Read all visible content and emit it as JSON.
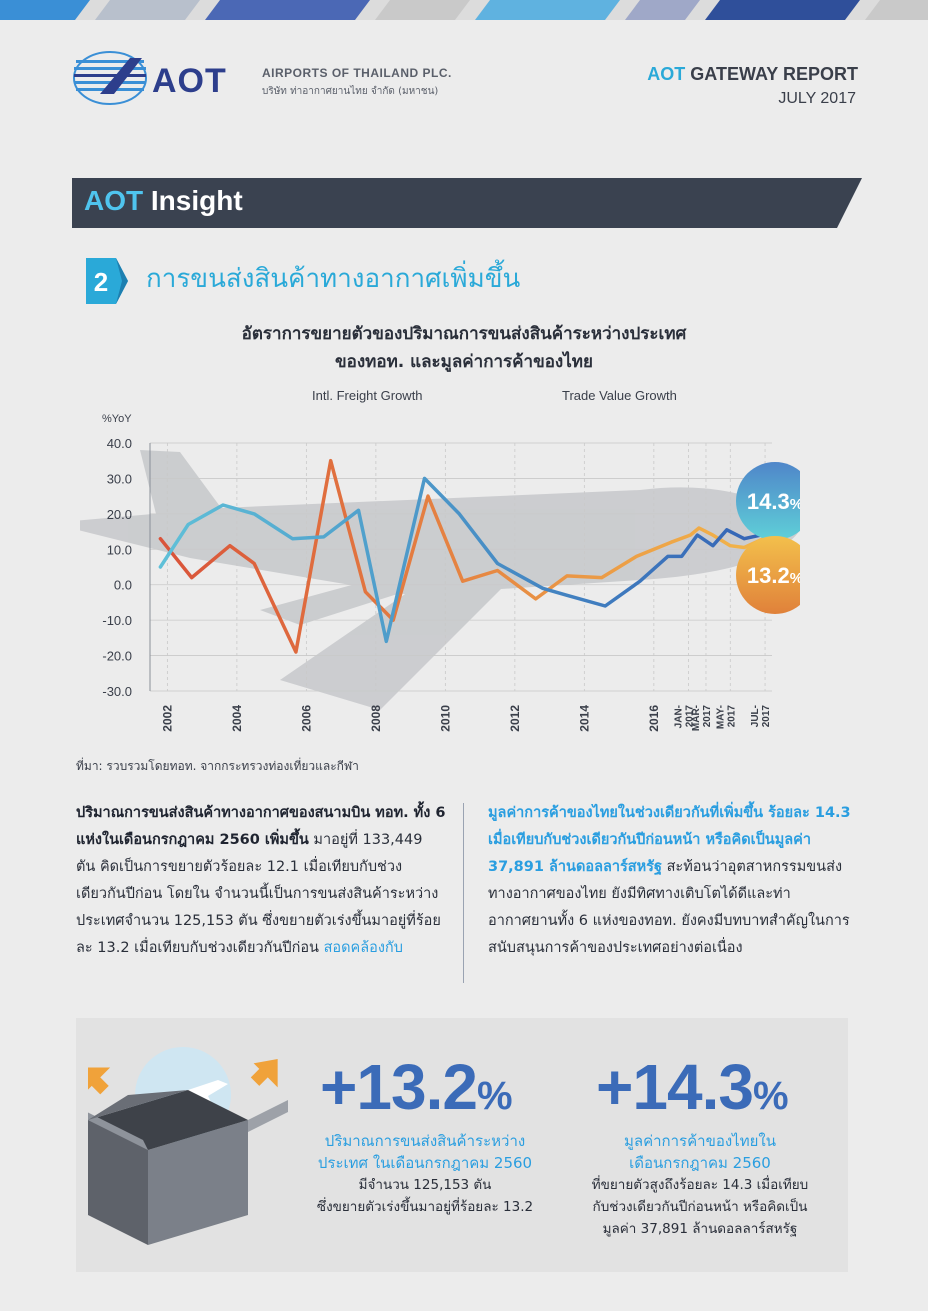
{
  "header": {
    "logo_text": "AOT",
    "company_en": "AIRPORTS OF THAILAND PLC.",
    "company_th": "บริษัท ท่าอากาศยานไทย จำกัด (มหาชน)",
    "report_prefix": "AOT",
    "report_title": "GATEWAY REPORT",
    "report_month": "JULY 2017"
  },
  "insight": {
    "prefix": "AOT",
    "title": "Insight"
  },
  "section": {
    "number": "2",
    "title": "การขนส่งสินค้าทางอากาศเพิ่มขึ้น"
  },
  "chart_data": {
    "type": "line",
    "title_line1": "อัตราการขยายตัวของปริมาณการขนส่งสินค้าระหว่างประเทศ",
    "title_line2": "ของทอท. และมูลค่าการค้าของไทย",
    "ylabel": "%YoY",
    "ylim": [
      -30,
      40
    ],
    "yticks": [
      "40.0",
      "30.0",
      "20.0",
      "10.0",
      "0.0",
      "-10.0",
      "-20.0",
      "-30.0"
    ],
    "xticks": [
      "2002",
      "2004",
      "2006",
      "2008",
      "2010",
      "2012",
      "2014",
      "2016",
      "JAN-2017",
      "MAR-2017",
      "MAY-2017",
      "JUL-2017"
    ],
    "grid": true,
    "legend": "top",
    "series": [
      {
        "name": "Intl. Freight Growth",
        "color_start": "#d9533a",
        "color_end": "#f2b64a",
        "points": [
          [
            2001.8,
            13
          ],
          [
            2002.7,
            2
          ],
          [
            2003.8,
            11
          ],
          [
            2004.5,
            6
          ],
          [
            2005.7,
            -19
          ],
          [
            2006.7,
            35
          ],
          [
            2007.7,
            -2
          ],
          [
            2008.5,
            -10
          ],
          [
            2009.5,
            25
          ],
          [
            2010.5,
            1
          ],
          [
            2011.5,
            4
          ],
          [
            2012.6,
            -4
          ],
          [
            2013.5,
            2.5
          ],
          [
            2014.5,
            2
          ],
          [
            2015.5,
            8
          ],
          [
            2016.5,
            12
          ],
          [
            2017.05,
            14
          ],
          [
            2017.3,
            16
          ],
          [
            2017.7,
            14
          ],
          [
            2018.2,
            11
          ],
          [
            2018.6,
            10.5
          ],
          [
            2019.2,
            13.2
          ]
        ]
      },
      {
        "name": "Trade Value Growth",
        "color_start": "#5fc0d8",
        "color_end": "#3463b5",
        "points": [
          [
            2001.8,
            5
          ],
          [
            2002.6,
            17
          ],
          [
            2003.6,
            22.5
          ],
          [
            2004.5,
            20
          ],
          [
            2005.6,
            13
          ],
          [
            2006.5,
            13.5
          ],
          [
            2007.5,
            21
          ],
          [
            2008.3,
            -16
          ],
          [
            2009.4,
            30
          ],
          [
            2010.4,
            20
          ],
          [
            2011.5,
            6
          ],
          [
            2012.8,
            -1
          ],
          [
            2013.5,
            -3
          ],
          [
            2014.6,
            -6
          ],
          [
            2015.6,
            1
          ],
          [
            2016.4,
            8
          ],
          [
            2016.8,
            8
          ],
          [
            2017.25,
            14
          ],
          [
            2017.7,
            11
          ],
          [
            2018.1,
            15.5
          ],
          [
            2018.6,
            13
          ],
          [
            2019.2,
            14.3
          ]
        ]
      }
    ],
    "callouts": [
      {
        "label": "14.3",
        "pct": "%",
        "value": 14.3
      },
      {
        "label": "13.2",
        "pct": "%",
        "value": 13.2
      }
    ]
  },
  "source": "ที่มา: รวบรวมโดยทอท. จากกระทรวงท่องเที่ยวและกีฬา",
  "left_col": {
    "bold": "ปริมาณการขนส่งสินค้าทางอากาศของสนามบิน ทอท. ทั้ง 6 แห่งในเดือนกรกฎาคม 2560 เพิ่มขึ้น",
    "body": "มาอยู่ที่ 133,449 ตัน คิดเป็นการขยายตัวร้อยละ 12.1 เมื่อเทียบกับช่วงเดียวกันปีก่อน โดยใน จำนวนนี้เป็นการขนส่งสินค้าระหว่างประเทศจำนวน 125,153 ตัน ซึ่งขยายตัวเร่งขึ้นมาอยู่ที่ร้อยละ 13.2 เมื่อเทียบกับช่วงเดียวกันปีก่อน",
    "link": "สอดคล้องกับ"
  },
  "right_col": {
    "bold": "มูลค่าการค้าของไทยในช่วงเดียวกันที่เพิ่มขึ้น ร้อยละ 14.3 เมื่อเทียบกับช่วงเดียวกันปีก่อนหน้า หรือคิดเป็นมูลค่า 37,891 ล้านดอลลาร์สหรัฐ",
    "body": "สะท้อนว่าอุตสาหกรรมขนส่งทางอากาศของไทย ยังมีทิศทางเติบโตได้ดีและท่าอากาศยานทั้ง 6 แห่งของทอท. ยังคงมีบทบาทสำคัญในการ สนับสนุนการค้าของประเทศอย่างต่อเนื่อง"
  },
  "stat1": {
    "value": "+13.2",
    "pct": "%",
    "line1": "ปริมาณการขนส่งสินค้าระหว่าง",
    "line2": "ประเทศ ในเดือนกรกฎาคม 2560",
    "line3": "มีจำนวน 125,153 ตัน",
    "line4": "ซึ่งขยายตัวเร่งขึ้นมาอยู่ที่ร้อยละ 13.2"
  },
  "stat2": {
    "value": "+14.3",
    "pct": "%",
    "line1": "มูลค่าการค้าของไทยใน",
    "line2": "เดือนกรกฎาคม 2560",
    "line3": "ที่ขยายตัวสูงถึงร้อยละ 14.3 เมื่อเทียบ",
    "line4": "กับช่วงเดียวกันปีก่อนหน้า หรือคิดเป็น",
    "line5": "มูลค่า 37,891 ล้านดอลลาร์สหรัฐ"
  }
}
